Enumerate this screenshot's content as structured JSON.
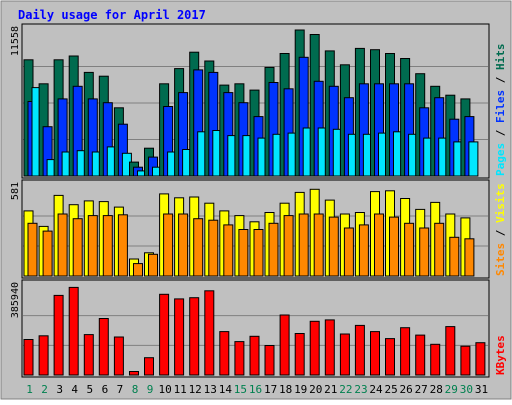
{
  "chart_data": {
    "type": "bar",
    "title": "Daily usage for April 2017",
    "categories": [
      "1",
      "2",
      "3",
      "4",
      "5",
      "6",
      "7",
      "8",
      "9",
      "10",
      "11",
      "12",
      "13",
      "14",
      "15",
      "16",
      "17",
      "18",
      "19",
      "20",
      "21",
      "22",
      "23",
      "24",
      "25",
      "26",
      "27",
      "28",
      "29",
      "30",
      "31"
    ],
    "weekend_days": [
      "1",
      "2",
      "8",
      "9",
      "15",
      "16",
      "22",
      "23",
      "29",
      "30"
    ],
    "panels": [
      {
        "name": "hits-files-pages",
        "ymax_label": "11558",
        "ylim": [
          0,
          11558
        ],
        "legend": [
          "Pages",
          "Files",
          "Hits"
        ],
        "series": [
          {
            "name": "Hits",
            "color": "#006B4F",
            "values": [
              9200,
              7300,
              9200,
              9500,
              8200,
              7900,
              5400,
              1100,
              2200,
              7300,
              8500,
              9800,
              9100,
              7200,
              7300,
              6800,
              8600,
              9700,
              11558,
              11200,
              9900,
              8800,
              10100,
              10000,
              9700,
              9300,
              8100,
              7100,
              6400,
              6100,
              null
            ]
          },
          {
            "name": "Files",
            "color": "#0033FF",
            "values": [
              5900,
              3900,
              6100,
              7100,
              6100,
              5800,
              4100,
              700,
              1500,
              5500,
              6600,
              8400,
              8200,
              6600,
              5800,
              4700,
              7400,
              6900,
              9400,
              7500,
              7100,
              6200,
              7300,
              7300,
              7300,
              7300,
              5400,
              6200,
              4500,
              4700,
              null
            ]
          },
          {
            "name": "Pages",
            "color": "#00E6FF",
            "values": [
              7000,
              1300,
              1900,
              2000,
              1900,
              2300,
              1800,
              400,
              700,
              1900,
              2100,
              3500,
              3600,
              3200,
              3200,
              3000,
              3300,
              3400,
              3800,
              3800,
              3700,
              3300,
              3300,
              3400,
              3500,
              3300,
              3000,
              3000,
              2700,
              2700,
              null
            ]
          }
        ]
      },
      {
        "name": "visits-sites",
        "ymax_label": "581",
        "ylim": [
          0,
          581
        ],
        "legend": [
          "Sites",
          "Visits"
        ],
        "series": [
          {
            "name": "Visits",
            "color": "#FFFF00",
            "values": [
              420,
              320,
              520,
              460,
              485,
              480,
              445,
              110,
              150,
              530,
              505,
              510,
              470,
              420,
              390,
              350,
              410,
              470,
              540,
              560,
              490,
              400,
              410,
              545,
              550,
              500,
              430,
              475,
              400,
              375,
              null
            ]
          },
          {
            "name": "Sites",
            "color": "#FF8800",
            "values": [
              340,
              290,
              400,
              370,
              390,
              390,
              395,
              80,
              140,
              400,
              400,
              370,
              360,
              330,
              300,
              300,
              340,
              390,
              400,
              400,
              380,
              310,
              330,
              400,
              380,
              340,
              310,
              340,
              250,
              240,
              null
            ]
          }
        ]
      },
      {
        "name": "kbytes",
        "ymax_label": "385940",
        "ylim": [
          0,
          385940
        ],
        "legend": [
          "KBytes"
        ],
        "series": [
          {
            "name": "KBytes",
            "color": "#FF0000",
            "values": [
              154000,
              170000,
              345000,
              380000,
              175000,
              245000,
              165000,
              15000,
              75000,
              350000,
              330000,
              335000,
              365000,
              188000,
              145000,
              168000,
              128000,
              260000,
              180000,
              233000,
              239000,
              178000,
              215000,
              188000,
              158000,
              205000,
              173000,
              133000,
              210000,
              125000,
              140000
            ]
          }
        ]
      }
    ]
  },
  "colors": {
    "panel_bg": "#C0C0C0",
    "title": "#0000FF",
    "weekday_label": "#000000",
    "weekend_label": "#00804F"
  }
}
